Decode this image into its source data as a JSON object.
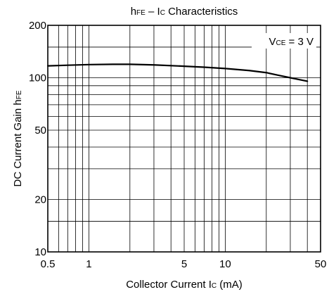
{
  "chart_data": {
    "type": "line",
    "title": {
      "main_1": "h",
      "main_sub_1": "FE",
      "main_2": " – I",
      "main_sub_2": "C",
      "main_3": " Characteristics"
    },
    "xlabel": {
      "part_1": "Collector Current I",
      "part_sub": "C",
      "part_2": " (mA)"
    },
    "ylabel": {
      "part_1": "DC Current Gain h",
      "part_sub": "FE"
    },
    "annotation": {
      "part_1": "V",
      "part_sub": "CE",
      "part_2": " = 3 V"
    },
    "x_scale": "log",
    "y_scale": "log",
    "xlim": [
      0.5,
      50
    ],
    "ylim": [
      10,
      200
    ],
    "x_tick_labels": [
      {
        "value": 0.5,
        "label": "0.5"
      },
      {
        "value": 1,
        "label": "1"
      },
      {
        "value": 5,
        "label": "5"
      },
      {
        "value": 10,
        "label": "10"
      },
      {
        "value": 50,
        "label": "50"
      }
    ],
    "y_tick_labels": [
      {
        "value": 10,
        "label": "10"
      },
      {
        "value": 20,
        "label": "20"
      },
      {
        "value": 50,
        "label": "50"
      },
      {
        "value": 100,
        "label": "100"
      },
      {
        "value": 200,
        "label": "200"
      }
    ],
    "x_gridlines": [
      0.5,
      0.6,
      0.7,
      0.8,
      0.9,
      1,
      2,
      3,
      4,
      5,
      6,
      7,
      8,
      9,
      10,
      20,
      30,
      40,
      50
    ],
    "y_gridlines": [
      10,
      15,
      20,
      30,
      40,
      50,
      60,
      70,
      80,
      90,
      100,
      150,
      200
    ],
    "grid": true,
    "series": [
      {
        "color": "#000000",
        "x": [
          0.5,
          0.7,
          1.0,
          1.5,
          2.0,
          3.0,
          5.0,
          7.0,
          10,
          15,
          20,
          25,
          30,
          35,
          40
        ],
        "y": [
          117,
          118,
          119,
          119.5,
          119.5,
          118.5,
          116.5,
          115,
          113,
          110,
          107,
          103,
          100,
          97.5,
          95.5
        ]
      }
    ]
  }
}
